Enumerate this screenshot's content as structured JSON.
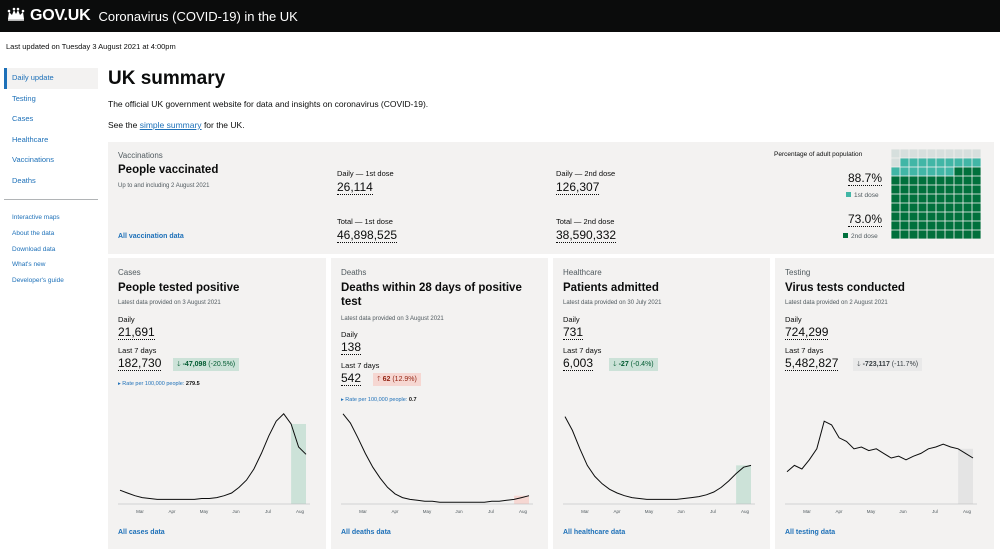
{
  "header": {
    "brand": "GOV.UK",
    "service": "Coronavirus (COVID-19) in the UK"
  },
  "updated": "Last updated on Tuesday 3 August 2021 at 4:00pm",
  "nav": {
    "items": [
      "Daily update",
      "Testing",
      "Cases",
      "Healthcare",
      "Vaccinations",
      "Deaths"
    ],
    "secondary": [
      "Interactive maps",
      "About the data",
      "Download data",
      "What's new",
      "Developer's guide"
    ]
  },
  "page": {
    "title": "UK summary",
    "intro": "The official UK government website for data and insights on coronavirus (COVID-19).",
    "see_pre": "See the",
    "see_link": "simple summary",
    "see_post": "for the UK."
  },
  "vaccinations": {
    "caption": "Vaccinations",
    "title": "People vaccinated",
    "date": "Up to and including 2 August 2021",
    "daily_first_label": "Daily — 1st dose",
    "daily_first": "26,114",
    "daily_second_label": "Daily — 2nd dose",
    "daily_second": "126,307",
    "total_first_label": "Total — 1st dose",
    "total_first": "46,898,525",
    "total_second_label": "Total — 2nd dose",
    "total_second": "38,590,332",
    "link": "All vaccination data",
    "pct_title": "Percentage of adult population",
    "first_pct": "88.7%",
    "first_label": "1st dose",
    "second_pct": "73.0%",
    "second_label": "2nd dose",
    "first_pct_value": 88.7,
    "second_pct_value": 73.0,
    "colors": {
      "first": "#41b6a6",
      "second": "#00703c",
      "empty": "#d6dfdd"
    }
  },
  "month_labels": [
    "Mar",
    "Apr",
    "May",
    "Jun",
    "Jul",
    "Aug"
  ],
  "cards": [
    {
      "caption": "Cases",
      "title": "People tested positive",
      "title2": "",
      "provided": "Latest data provided on 3 August 2021",
      "daily_label": "Daily",
      "daily": "21,691",
      "week_label": "Last 7 days",
      "week": "182,730",
      "arrow": "🡓",
      "change_num": "-47,098",
      "change_pct": "(-20.5%)",
      "change_type": "down",
      "rate_label": "▸ Rate per 100,000 people:",
      "rate_value": "279.5",
      "link": "All cases data"
    },
    {
      "caption": "Deaths",
      "title": "Deaths within 28 days of positive",
      "title2": "test",
      "provided": "Latest data provided on 3 August 2021",
      "daily_label": "Daily",
      "daily": "138",
      "week_label": "Last 7 days",
      "week": "542",
      "arrow": "🡑",
      "change_num": "62",
      "change_pct": "(12.9%)",
      "change_type": "up",
      "rate_label": "▸ Rate per 100,000 people:",
      "rate_value": "0.7",
      "link": "All deaths data"
    },
    {
      "caption": "Healthcare",
      "title": "Patients admitted",
      "title2": "",
      "provided": "Latest data provided on 30 July 2021",
      "daily_label": "Daily",
      "daily": "731",
      "week_label": "Last 7 days",
      "week": "6,003",
      "arrow": "🡓",
      "change_num": "-27",
      "change_pct": "(-0.4%)",
      "change_type": "down",
      "rate_label": "",
      "rate_value": "",
      "link": "All healthcare data"
    },
    {
      "caption": "Testing",
      "title": "Virus tests conducted",
      "title2": "",
      "provided": "Latest data provided on 2 August 2021",
      "daily_label": "Daily",
      "daily": "724,299",
      "week_label": "Last 7 days",
      "week": "5,482,827",
      "arrow": "🡓",
      "change_num": "-723,117",
      "change_pct": "(-11.7%)",
      "change_type": "neutral",
      "rate_label": "",
      "rate_value": "",
      "link": "All testing data"
    }
  ],
  "chart_data": [
    {
      "type": "line",
      "series": [
        {
          "values": [
            0.15,
            0.12,
            0.09,
            0.07,
            0.06,
            0.05,
            0.05,
            0.05,
            0.05,
            0.05,
            0.05,
            0.06,
            0.06,
            0.07,
            0.09,
            0.12,
            0.18,
            0.26,
            0.38,
            0.55,
            0.74,
            0.9,
            0.98,
            0.87,
            0.62,
            0.54
          ]
        }
      ],
      "highlight_last": 3,
      "highlight_color": "#cce2d8"
    },
    {
      "type": "line",
      "series": [
        {
          "values": [
            0.98,
            0.88,
            0.72,
            0.55,
            0.4,
            0.28,
            0.18,
            0.11,
            0.07,
            0.05,
            0.04,
            0.03,
            0.03,
            0.02,
            0.02,
            0.02,
            0.02,
            0.02,
            0.02,
            0.02,
            0.03,
            0.03,
            0.04,
            0.05,
            0.07,
            0.09
          ]
        }
      ],
      "highlight_last": 3,
      "highlight_color": "#f6d7d2"
    },
    {
      "type": "line",
      "series": [
        {
          "values": [
            0.95,
            0.8,
            0.6,
            0.42,
            0.3,
            0.22,
            0.16,
            0.12,
            0.09,
            0.07,
            0.06,
            0.05,
            0.05,
            0.05,
            0.05,
            0.05,
            0.06,
            0.07,
            0.08,
            0.1,
            0.13,
            0.18,
            0.25,
            0.33,
            0.4,
            0.42
          ]
        }
      ],
      "highlight_last": 3,
      "highlight_color": "#cce2d8"
    },
    {
      "type": "line",
      "series": [
        {
          "values": [
            0.35,
            0.42,
            0.38,
            0.48,
            0.6,
            0.9,
            0.86,
            0.72,
            0.68,
            0.6,
            0.62,
            0.58,
            0.6,
            0.55,
            0.5,
            0.52,
            0.48,
            0.52,
            0.55,
            0.6,
            0.62,
            0.65,
            0.62,
            0.6,
            0.55,
            0.5
          ]
        }
      ],
      "highlight_last": 3,
      "highlight_color": "#e4e4e4"
    }
  ]
}
